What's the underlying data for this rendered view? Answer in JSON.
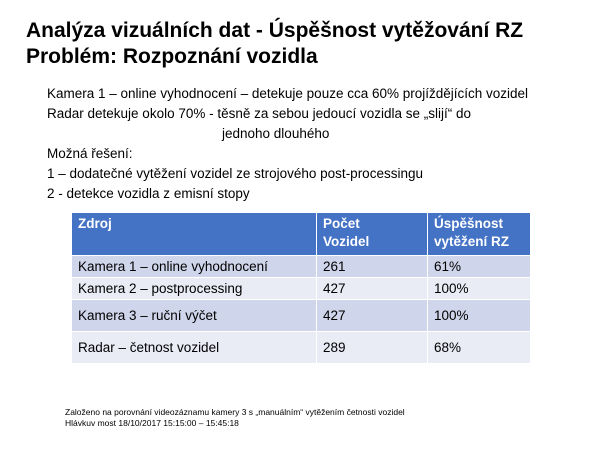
{
  "slide": {
    "title_line1": "Analýza vizuálních dat - Úspěšnost vytěžování RZ",
    "title_line2": "Problém: Rozpoznání vozidla"
  },
  "body": {
    "line1": "Kamera 1 – online vyhodnocení – detekuje pouze cca 60% projíždějících vozidel",
    "line2": "Radar detekuje okolo 70%  - těsně za sebou jedoucí vozidla se „slijí“ do",
    "line3": "jednoho dlouhého",
    "line4": "Možná řešení:",
    "line5": "1 – dodatečné vytěžení vozidel ze strojového post-processingu",
    "line6": "2 -  detekce vozidla z emisní stopy"
  },
  "table": {
    "headers": [
      "Zdroj",
      "Počet\nVozidel",
      "Úspěšnost\nvytěžení RZ"
    ],
    "header_col1": "Zdroj",
    "header_col2_l1": "Počet",
    "header_col2_l2": "Vozidel",
    "header_col3_l1": "Úspěšnost",
    "header_col3_l2": "vytěžení RZ",
    "rows": [
      {
        "source": "Kamera 1 – online vyhodnocení",
        "count": "261",
        "success": "61%"
      },
      {
        "source": "Kamera 2 – postprocessing",
        "count": "427",
        "success": "100%"
      },
      {
        "source": "Kamera 3 – ruční výčet",
        "count": "427",
        "success": "100%"
      },
      {
        "source": "Radar – četnost vozidel",
        "count": "289",
        "success": "68%"
      }
    ]
  },
  "footnote": {
    "line1": "Založeno na porovnání videozáznamu kamery 3 s „manuálním“ vytěžením četnosti vozidel",
    "line2": " Hlávkuv most 18/10/2017 15:15:00 – 15:45:18"
  },
  "colors": {
    "header_bg": "#4472c4",
    "row_dark": "#cfd5ea",
    "row_light": "#e9ebf5"
  }
}
